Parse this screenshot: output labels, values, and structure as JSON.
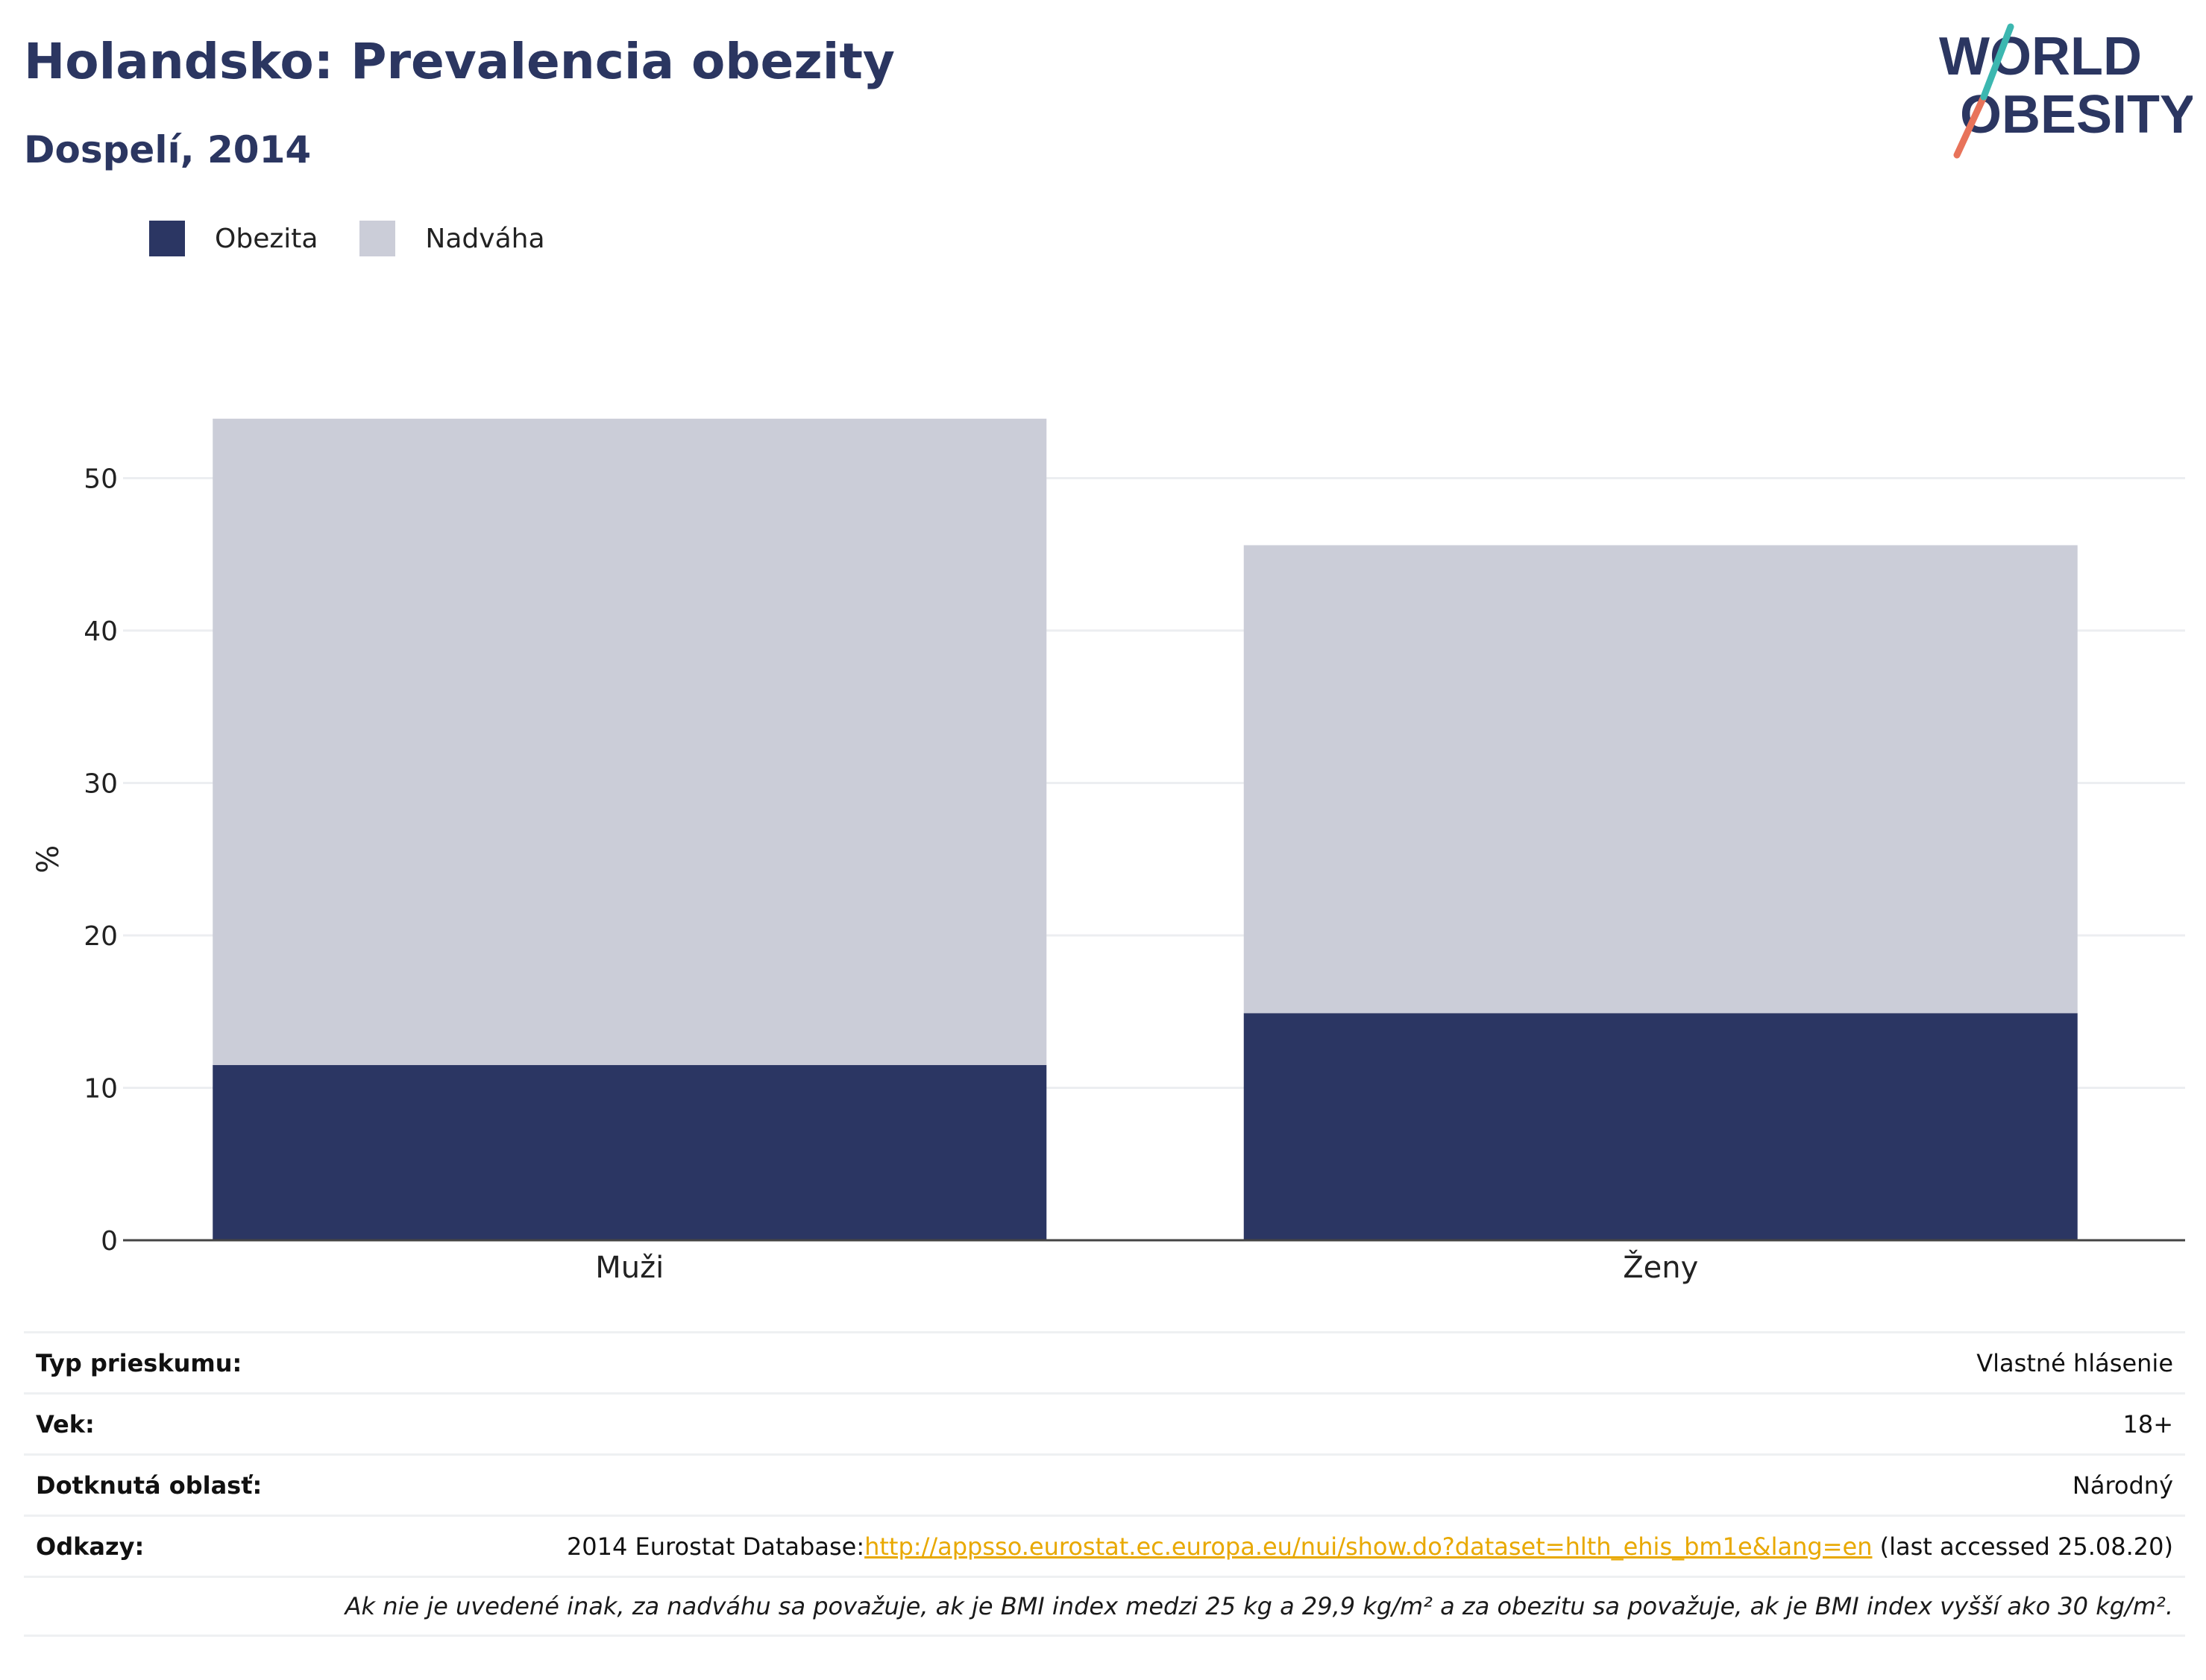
{
  "header": {
    "title": "Holandsko: Prevalencia obezity",
    "subtitle": "Dospelí, 2014"
  },
  "logo": {
    "line1": "WORLD",
    "line2": "OBESITY"
  },
  "legend": [
    {
      "label": "Obezita",
      "color": "#2b3663"
    },
    {
      "label": "Nadváha",
      "color": "#cbcdd8"
    }
  ],
  "chart_data": {
    "type": "bar",
    "stacked": true,
    "categories": [
      "Muži",
      "Ženy"
    ],
    "series": [
      {
        "name": "Obezita",
        "values": [
          11.5,
          14.9
        ],
        "color": "#2b3663"
      },
      {
        "name": "Nadváha",
        "values": [
          42.4,
          30.7
        ],
        "color": "#cbcdd8"
      }
    ],
    "ylabel": "%",
    "ylim": [
      0,
      60
    ],
    "yticks": [
      0,
      10,
      20,
      30,
      40,
      50
    ],
    "grid": true,
    "legend_position": "top-left"
  },
  "info": {
    "survey_type": {
      "key": "Typ prieskumu:",
      "value": "Vlastné hlásenie"
    },
    "age": {
      "key": "Vek:",
      "value": "18+"
    },
    "area": {
      "key": "Dotknutá oblasť:",
      "value": "Národný"
    },
    "refs": {
      "key": "Odkazy:",
      "prefix": "2014 Eurostat Database:",
      "url": "http://appsso.eurostat.ec.europa.eu/nui/show.do?dataset=hlth_ehis_bm1e&lang=en",
      "suffix": " (last accessed 25.08.20)"
    },
    "note": "Ak nie je uvedené inak, za nadváhu sa považuje, ak je BMI index medzi 25 kg a 29,9 kg/m² a za obezitu sa považuje, ak je BMI index vyšší ako 30 kg/m²."
  }
}
